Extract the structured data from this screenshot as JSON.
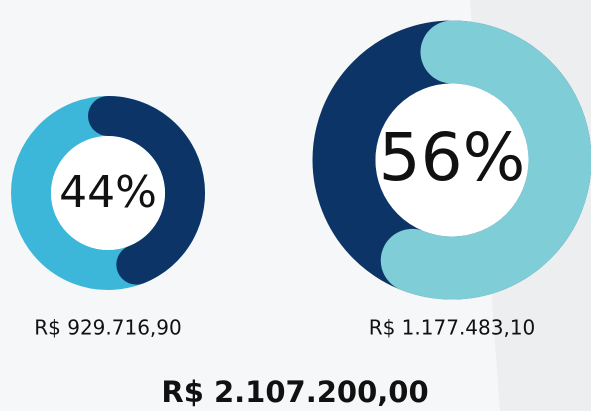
{
  "chart_data": [
    {
      "type": "donut",
      "values": [
        44
      ],
      "value_labels": [
        "44%"
      ],
      "amount": "R$ 929.716,90",
      "color": "#0d3466",
      "track_color": "#3cb6d9"
    },
    {
      "type": "donut",
      "values": [
        56
      ],
      "value_labels": [
        "56%"
      ],
      "amount": "R$ 1.177.483,10",
      "color": "#7fcdd6",
      "track_color": "#0d3466"
    }
  ],
  "total": "R$ 2.107.200,00"
}
